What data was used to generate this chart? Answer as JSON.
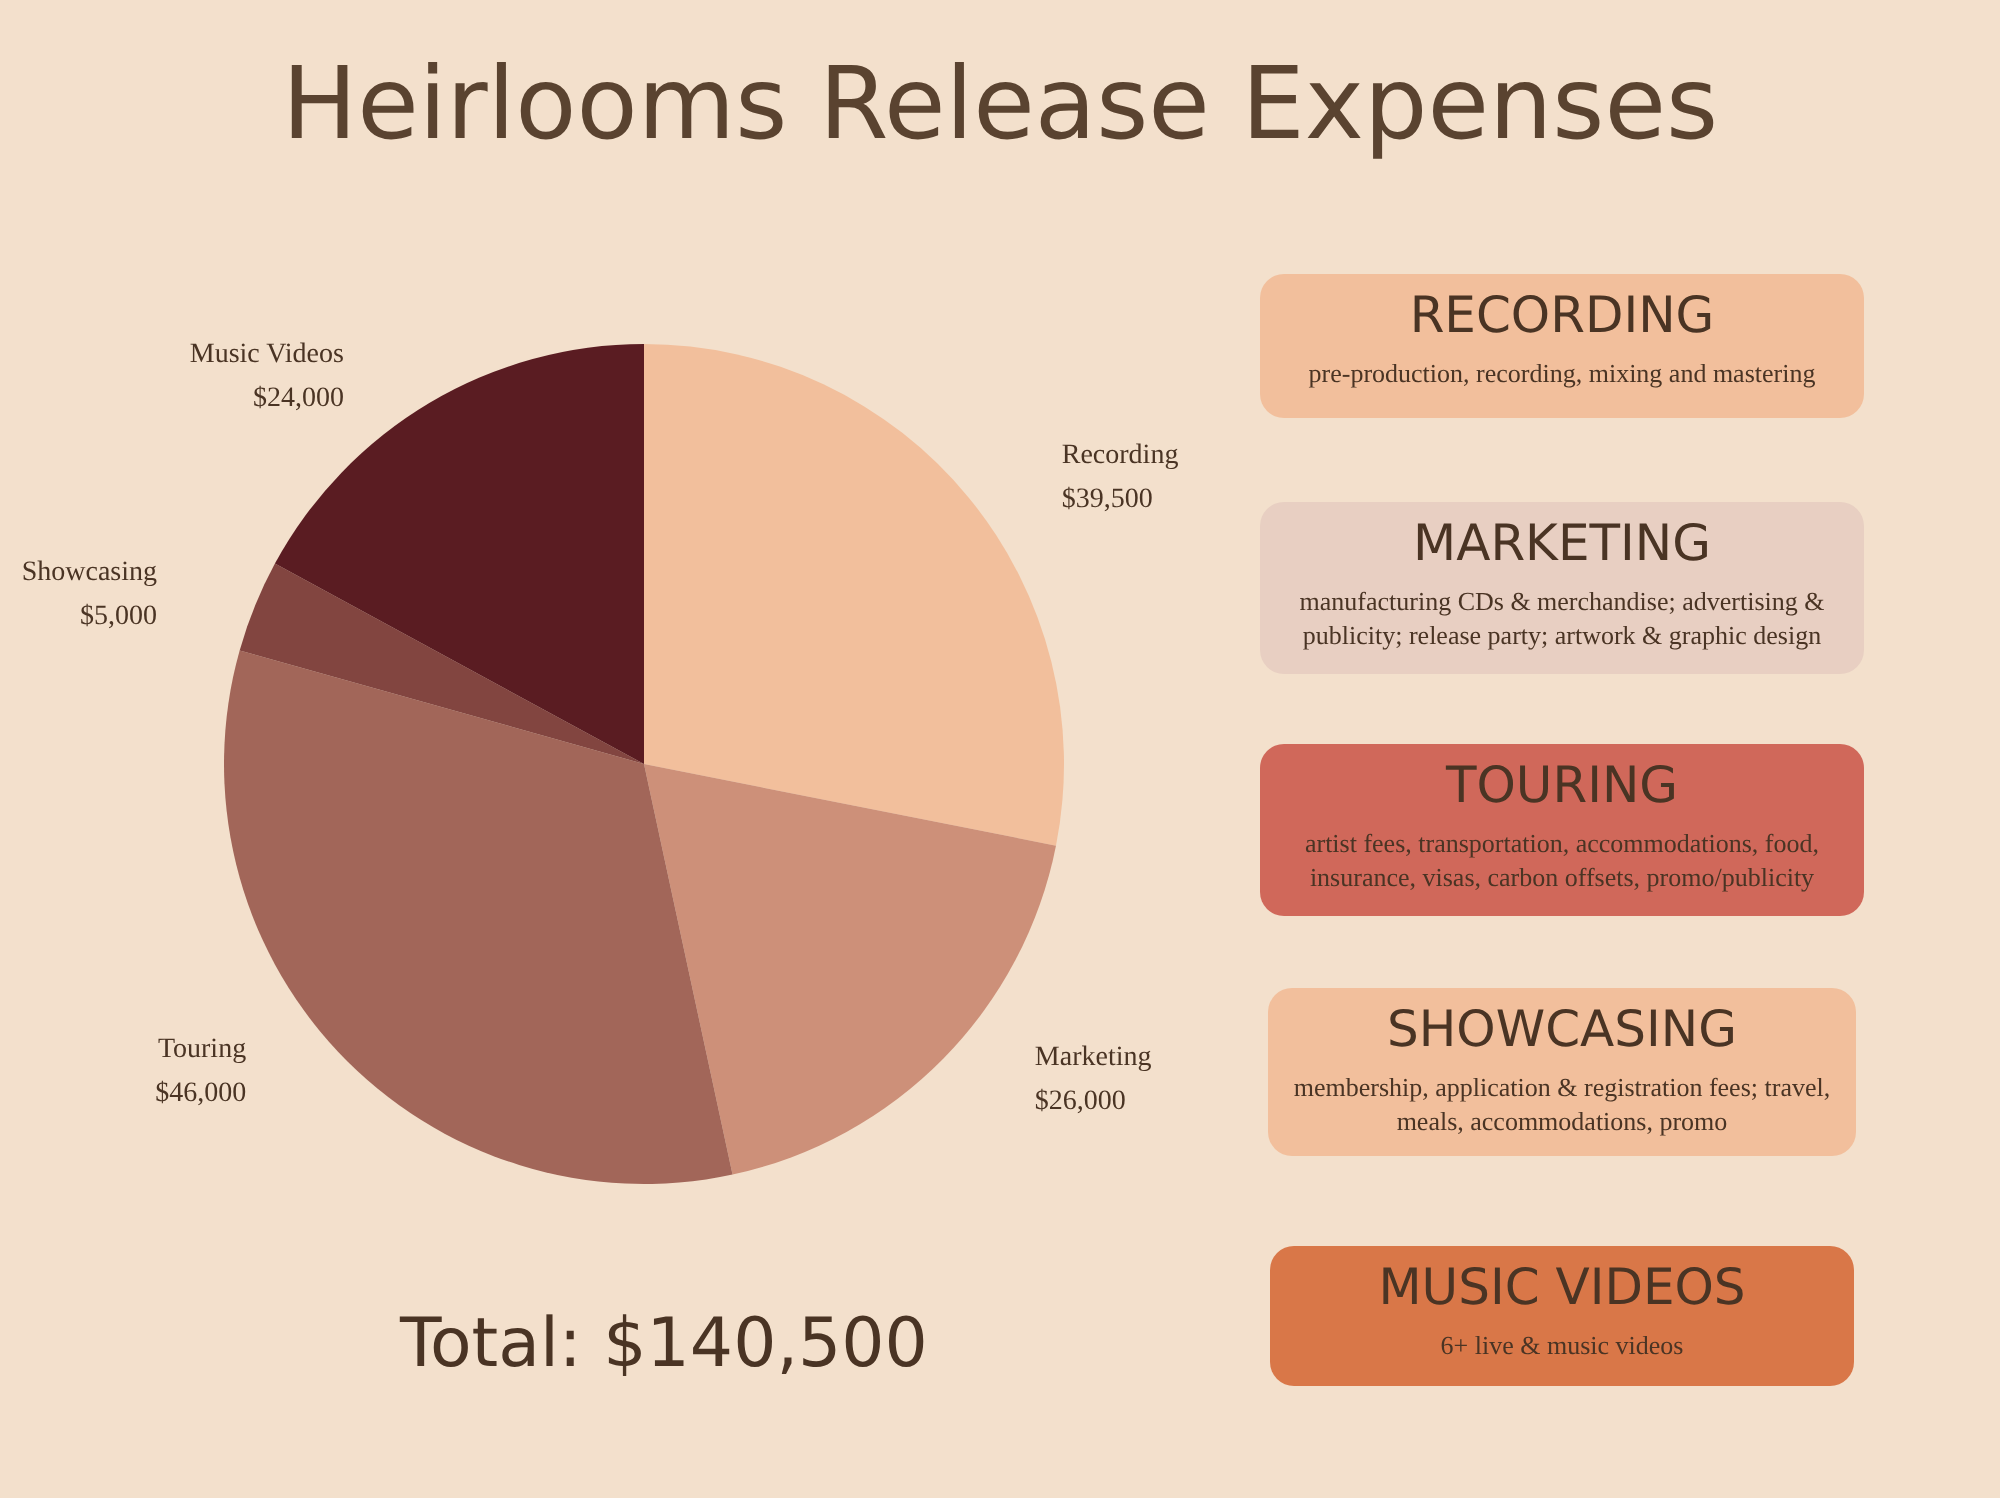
{
  "chart_data": [
    {
      "type": "pie",
      "title": "Heirlooms Release Expenses",
      "categories": [
        "Recording",
        "Marketing",
        "Touring",
        "Showcasing",
        "Music Videos"
      ],
      "values": [
        39500,
        26000,
        46000,
        5000,
        24000
      ],
      "value_labels": [
        "$39,500",
        "$26,000",
        "$46,000",
        "$5,000",
        "$24,000"
      ],
      "colors": [
        "#f2bf9c",
        "#cd9079",
        "#a26659",
        "#824540",
        "#5a1c22"
      ],
      "annotations": [
        "Total: $140,500"
      ],
      "legend": false
    },
    {
      "type": "other",
      "annotations": [
        "RECORDING",
        "pre-production, recording, mixing and mastering",
        "MARKETING",
        "manufacturing CDs & merchandise; advertising & publicity; release party; artwork & graphic design",
        "TOURING",
        "artist fees, transportation, accommodations, food, insurance, visas, carbon offsets, promo/publicity",
        "SHOWCASING",
        "membership, application & registration fees; travel, meals, accommodations, promo",
        "MUSIC VIDEOS",
        "6+ live & music videos"
      ],
      "colors": [
        "#f2bf9c",
        "#e8cfc2",
        "#d0685a",
        "#f2bf9c",
        "#d97748"
      ]
    }
  ]
}
